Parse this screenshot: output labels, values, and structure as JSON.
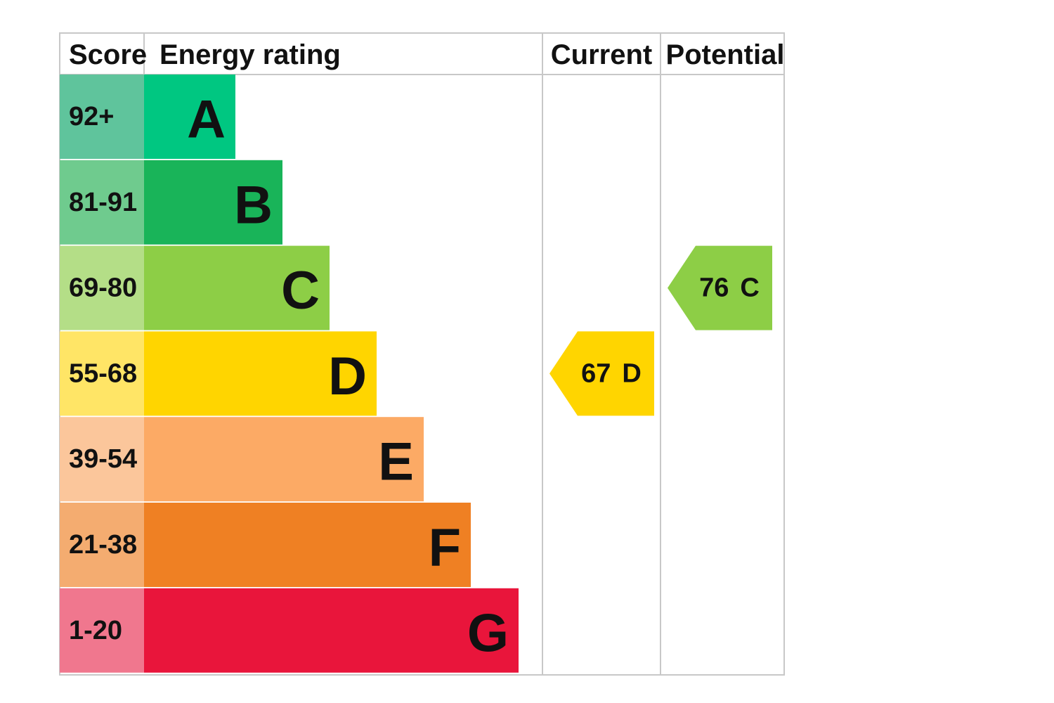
{
  "header": {
    "score": "Score",
    "rating": "Energy rating",
    "current": "Current",
    "potential": "Potential"
  },
  "bands": [
    {
      "score": "92+",
      "letter": "A"
    },
    {
      "score": "81-91",
      "letter": "B"
    },
    {
      "score": "69-80",
      "letter": "C"
    },
    {
      "score": "55-68",
      "letter": "D"
    },
    {
      "score": "39-54",
      "letter": "E"
    },
    {
      "score": "21-38",
      "letter": "F"
    },
    {
      "score": "1-20",
      "letter": "G"
    }
  ],
  "current": {
    "value": 67,
    "letter": "D"
  },
  "potential": {
    "value": 76,
    "letter": "C"
  }
}
